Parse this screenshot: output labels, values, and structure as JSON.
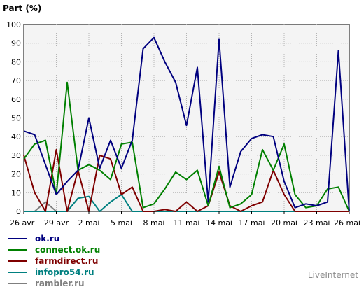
{
  "chart_data": {
    "type": "line",
    "title": "",
    "ylabel": "Part (%)",
    "xlabel": "",
    "ylim": [
      0,
      100
    ],
    "yticks": [
      0,
      10,
      20,
      30,
      40,
      50,
      60,
      70,
      80,
      90,
      100
    ],
    "grid": true,
    "legend_position": "bottom-left",
    "x_tick_labels": [
      "26 avr",
      "29 avr",
      "2 mai",
      "5 mai",
      "8 mai",
      "11 mai",
      "14 mai",
      "17 mai",
      "20 mai",
      "23 mai",
      "26 mai"
    ],
    "x_tick_days": [
      0,
      3,
      6,
      9,
      12,
      15,
      18,
      21,
      24,
      27,
      30
    ],
    "x": [
      0,
      1,
      2,
      3,
      4,
      5,
      6,
      7,
      8,
      9,
      10,
      11,
      12,
      13,
      14,
      15,
      16,
      17,
      18,
      19,
      20,
      21,
      22,
      23,
      24,
      25,
      26,
      27,
      28,
      29,
      30
    ],
    "series": [
      {
        "name": "ok.ru",
        "color": "#00007f",
        "values": [
          43,
          41,
          25,
          9,
          16,
          22,
          50,
          23,
          38,
          23,
          38,
          87,
          93,
          80,
          69,
          46,
          77,
          5,
          92,
          13,
          32,
          39,
          41,
          40,
          16,
          2,
          4,
          3,
          5,
          86,
          0
        ]
      },
      {
        "name": "connect.ok.ru",
        "color": "#008000",
        "values": [
          28,
          36,
          38,
          9,
          69,
          22,
          25,
          22,
          17,
          36,
          37,
          2,
          4,
          12,
          21,
          17,
          22,
          3,
          24,
          2,
          4,
          9,
          33,
          22,
          36,
          9,
          2,
          3,
          12,
          13,
          0
        ]
      },
      {
        "name": "farmdirect.ru",
        "color": "#7f0000",
        "values": [
          30,
          10,
          0,
          33,
          0,
          22,
          0,
          30,
          28,
          9,
          13,
          0,
          0,
          1,
          0,
          5,
          0,
          3,
          21,
          3,
          0,
          3,
          5,
          22,
          9,
          0,
          0,
          0,
          0,
          0,
          0
        ]
      },
      {
        "name": "infopro54.ru",
        "color": "#008080",
        "values": [
          0,
          0,
          0,
          0,
          0,
          7,
          8,
          0,
          5,
          9,
          0,
          0,
          0,
          0,
          0,
          0,
          0,
          0,
          0,
          0,
          0,
          0,
          0,
          0,
          0,
          0,
          0,
          0,
          0,
          0,
          0
        ]
      },
      {
        "name": "rambler.ru",
        "color": "#7f7f7f",
        "values": [
          0,
          0,
          5,
          0,
          0,
          0,
          0,
          0,
          0,
          0,
          0,
          0,
          0,
          0,
          0,
          0,
          0,
          0,
          0,
          0,
          0,
          0,
          0,
          0,
          0,
          0,
          0,
          0,
          0,
          0,
          0
        ]
      }
    ]
  },
  "brand": "LiveInternet"
}
